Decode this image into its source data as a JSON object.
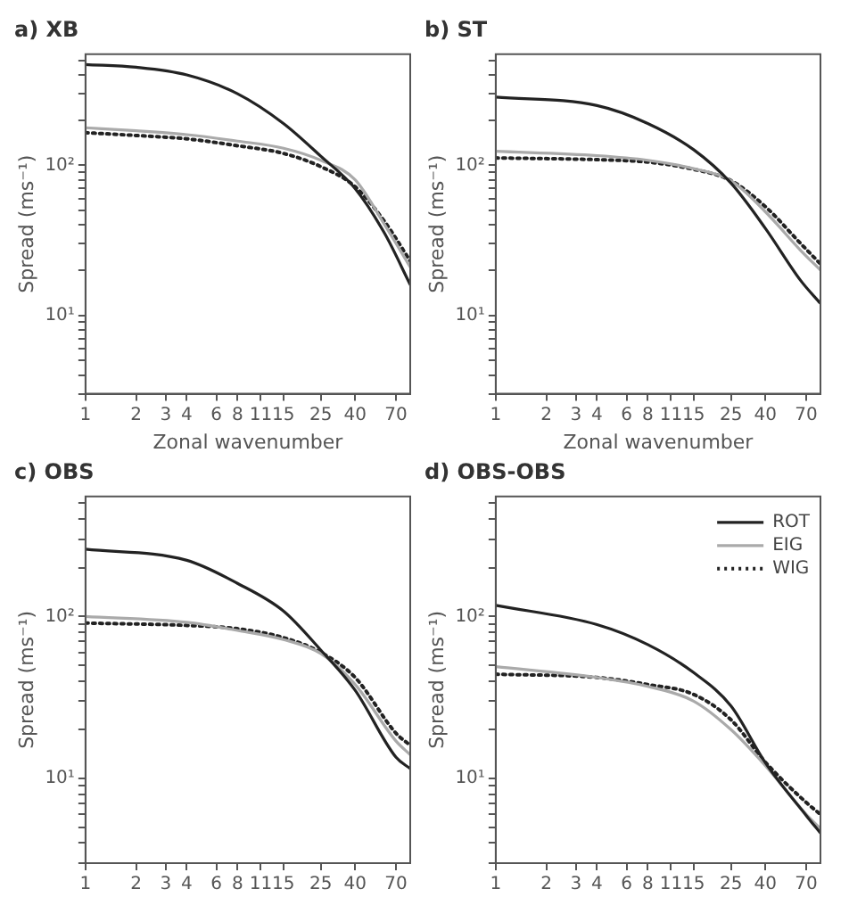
{
  "chart_data": [
    {
      "type": "line",
      "title": "a) XB",
      "xlabel": "Zonal wavenumber",
      "ylabel": "Spread (ms⁻¹)",
      "log": "xy",
      "grid": false,
      "legend": false,
      "xlim": [
        1,
        85
      ],
      "xticks": [
        1,
        2,
        3,
        4,
        6,
        8,
        11,
        15,
        25,
        40,
        70
      ],
      "ylim": [
        3,
        550
      ],
      "yticks": [
        {
          "value": 3,
          "label": null
        },
        {
          "value": 4,
          "label": null
        },
        {
          "value": 5,
          "label": null
        },
        {
          "value": 6,
          "label": null
        },
        {
          "value": 7,
          "label": null
        },
        {
          "value": 8,
          "label": null
        },
        {
          "value": 9,
          "label": null
        },
        {
          "value": 10,
          "label": "10¹"
        },
        {
          "value": 20,
          "label": null
        },
        {
          "value": 30,
          "label": null
        },
        {
          "value": 40,
          "label": null
        },
        {
          "value": 50,
          "label": null
        },
        {
          "value": 60,
          "label": null
        },
        {
          "value": 70,
          "label": null
        },
        {
          "value": 80,
          "label": null
        },
        {
          "value": 90,
          "label": null
        },
        {
          "value": 100,
          "label": "10²"
        },
        {
          "value": 200,
          "label": null
        },
        {
          "value": 300,
          "label": null
        },
        {
          "value": 400,
          "label": null
        },
        {
          "value": 500,
          "label": null
        }
      ],
      "x": [
        1,
        2,
        4,
        8,
        15,
        25,
        40,
        60,
        85
      ],
      "series": [
        {
          "color": "#222222",
          "line_style": "solid",
          "values": [
            470,
            450,
            400,
            300,
            190,
            115,
            70,
            35,
            16
          ]
        },
        {
          "color": "#aaaaaa",
          "line_style": "solid",
          "values": [
            178,
            170,
            160,
            145,
            130,
            108,
            80,
            40,
            21
          ]
        },
        {
          "color": "#222222",
          "line_style": "dotted",
          "values": [
            165,
            158,
            150,
            135,
            120,
            98,
            72,
            42,
            23
          ]
        }
      ]
    },
    {
      "type": "line",
      "title": "b) ST",
      "xlabel": "Zonal wavenumber",
      "ylabel": "Spread (ms⁻¹)",
      "log": "xy",
      "grid": false,
      "legend": false,
      "xlim": [
        1,
        85
      ],
      "xticks": [
        1,
        2,
        3,
        4,
        6,
        8,
        11,
        15,
        25,
        40,
        70
      ],
      "ylim": [
        3,
        550
      ],
      "yticks": [
        {
          "value": 3,
          "label": null
        },
        {
          "value": 4,
          "label": null
        },
        {
          "value": 5,
          "label": null
        },
        {
          "value": 6,
          "label": null
        },
        {
          "value": 7,
          "label": null
        },
        {
          "value": 8,
          "label": null
        },
        {
          "value": 9,
          "label": null
        },
        {
          "value": 10,
          "label": "10¹"
        },
        {
          "value": 20,
          "label": null
        },
        {
          "value": 30,
          "label": null
        },
        {
          "value": 40,
          "label": null
        },
        {
          "value": 50,
          "label": null
        },
        {
          "value": 60,
          "label": null
        },
        {
          "value": 70,
          "label": null
        },
        {
          "value": 80,
          "label": null
        },
        {
          "value": 90,
          "label": null
        },
        {
          "value": 100,
          "label": "10²"
        },
        {
          "value": 200,
          "label": null
        },
        {
          "value": 300,
          "label": null
        },
        {
          "value": 400,
          "label": null
        },
        {
          "value": 500,
          "label": null
        }
      ],
      "x": [
        1,
        4,
        8,
        15,
        25,
        40,
        65,
        85
      ],
      "series": [
        {
          "color": "#222222",
          "line_style": "solid",
          "values": [
            285,
            250,
            190,
            127,
            76,
            38,
            17,
            12
          ]
        },
        {
          "color": "#aaaaaa",
          "line_style": "solid",
          "values": [
            124,
            116,
            108,
            95,
            79,
            49,
            27,
            20
          ]
        },
        {
          "color": "#222222",
          "line_style": "dotted",
          "values": [
            112,
            109,
            105,
            94,
            79,
            53,
            30,
            22
          ]
        }
      ]
    },
    {
      "type": "line",
      "title": "c) OBS",
      "ylabel": "Spread (ms⁻¹)",
      "log": "xy",
      "grid": false,
      "legend": false,
      "xlim": [
        1,
        85
      ],
      "xticks": [
        1,
        2,
        3,
        4,
        6,
        8,
        11,
        15,
        25,
        40,
        70
      ],
      "ylim": [
        3,
        550
      ],
      "yticks": [
        {
          "value": 3,
          "label": null
        },
        {
          "value": 4,
          "label": null
        },
        {
          "value": 5,
          "label": null
        },
        {
          "value": 6,
          "label": null
        },
        {
          "value": 7,
          "label": null
        },
        {
          "value": 8,
          "label": null
        },
        {
          "value": 9,
          "label": null
        },
        {
          "value": 10,
          "label": "10¹"
        },
        {
          "value": 20,
          "label": null
        },
        {
          "value": 30,
          "label": null
        },
        {
          "value": 40,
          "label": null
        },
        {
          "value": 50,
          "label": null
        },
        {
          "value": 60,
          "label": null
        },
        {
          "value": 70,
          "label": null
        },
        {
          "value": 80,
          "label": null
        },
        {
          "value": 90,
          "label": null
        },
        {
          "value": 100,
          "label": "10²"
        },
        {
          "value": 200,
          "label": null
        },
        {
          "value": 300,
          "label": null
        },
        {
          "value": 400,
          "label": null
        },
        {
          "value": 500,
          "label": null
        }
      ],
      "x": [
        1,
        4,
        8,
        15,
        25,
        40,
        70,
        85
      ],
      "series": [
        {
          "color": "#222222",
          "line_style": "solid",
          "values": [
            260,
            222,
            160,
            108,
            62,
            35,
            13.5,
            11.5
          ]
        },
        {
          "color": "#aaaaaa",
          "line_style": "solid",
          "values": [
            100,
            92,
            82,
            72,
            59,
            38,
            17,
            14
          ]
        },
        {
          "color": "#222222",
          "line_style": "dotted",
          "values": [
            91,
            88,
            84,
            74,
            60,
            42,
            19,
            16
          ]
        }
      ]
    },
    {
      "type": "line",
      "title": "d) OBS-OBS",
      "ylabel": "Spread (ms⁻¹)",
      "log": "xy",
      "grid": false,
      "legend": "top right",
      "xlim": [
        1,
        85
      ],
      "xticks": [
        1,
        2,
        3,
        4,
        6,
        8,
        11,
        15,
        25,
        40,
        70
      ],
      "ylim": [
        3,
        550
      ],
      "yticks": [
        {
          "value": 3,
          "label": null
        },
        {
          "value": 4,
          "label": null
        },
        {
          "value": 5,
          "label": null
        },
        {
          "value": 6,
          "label": null
        },
        {
          "value": 7,
          "label": null
        },
        {
          "value": 8,
          "label": null
        },
        {
          "value": 9,
          "label": null
        },
        {
          "value": 10,
          "label": "10¹"
        },
        {
          "value": 20,
          "label": null
        },
        {
          "value": 30,
          "label": null
        },
        {
          "value": 40,
          "label": null
        },
        {
          "value": 50,
          "label": null
        },
        {
          "value": 60,
          "label": null
        },
        {
          "value": 70,
          "label": null
        },
        {
          "value": 80,
          "label": null
        },
        {
          "value": 90,
          "label": null
        },
        {
          "value": 100,
          "label": "10²"
        },
        {
          "value": 200,
          "label": null
        },
        {
          "value": 300,
          "label": null
        },
        {
          "value": 400,
          "label": null
        },
        {
          "value": 500,
          "label": null
        }
      ],
      "x": [
        1,
        4,
        8,
        15,
        25,
        40,
        70,
        85
      ],
      "series": [
        {
          "name": "ROT",
          "color": "#222222",
          "line_style": "solid",
          "values": [
            117,
            89,
            67,
            45,
            28,
            12.5,
            5.9,
            4.6
          ]
        },
        {
          "name": "EIG",
          "color": "#aaaaaa",
          "line_style": "solid",
          "values": [
            49,
            42,
            37,
            30,
            20,
            12,
            6,
            4.9
          ]
        },
        {
          "name": "WIG",
          "color": "#222222",
          "line_style": "dotted",
          "values": [
            44,
            42,
            38,
            33,
            23,
            12.6,
            7.1,
            6
          ]
        }
      ]
    }
  ]
}
